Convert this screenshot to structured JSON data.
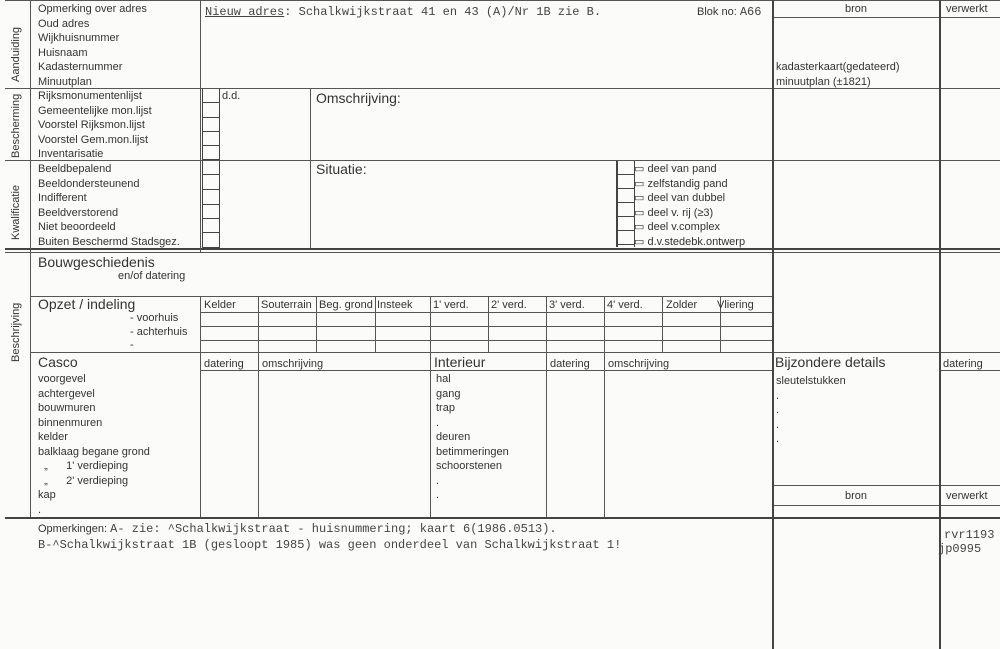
{
  "aanduiding": {
    "side_label": "Aanduiding",
    "fields": [
      "Opmerking over adres",
      "Oud adres",
      "Wijkhuisnummer",
      "Huisnaam",
      "Kadasternummer",
      "Minuutplan"
    ],
    "typed_label": "Nieuw adres",
    "typed_value": ": Schalkwijkstraat 41 en 43 (A)/Nr 1B zie B.",
    "blok_label": "Blok no:",
    "blok_value": "A66"
  },
  "bron_header": "bron",
  "verwerkt_header": "verwerkt",
  "bron_entries": [
    "kadasterkaart(gedateerd)",
    "minuutplan (±1821)"
  ],
  "bescherming": {
    "side_label": "Bescherming",
    "fields": [
      "Rijksmonumentenlijst",
      "Gemeentelijke mon.lijst",
      "Voorstel Rijksmon.lijst",
      "Voorstel Gem.mon.lijst",
      "Inventarisatie"
    ],
    "dd_label": "d.d.",
    "omschrijving_label": "Omschrijving:"
  },
  "kwalificatie": {
    "side_label": "Kwalificatie",
    "fields": [
      "Beeldbepalend",
      "Beeldondersteunend",
      "Indifferent",
      "Beeldverstorend",
      "Niet beoordeeld",
      "Buiten Beschermd Stadsgez."
    ],
    "situatie_label": "Situatie:",
    "situatie_options": [
      "deel van pand",
      "zelfstandig pand",
      "deel van dubbel",
      "deel v. rij  (≥3)",
      "deel v.complex",
      "d.v.stedebk.ontwerp"
    ]
  },
  "beschrijving": {
    "side_label": "Beschrijving",
    "bouwgeschiedenis": "Bouwgeschiedenis",
    "dating_sub": "en/of datering",
    "opzet": "Opzet / indeling",
    "opzet_rows": [
      "- voorhuis",
      "- achterhuis",
      "-"
    ],
    "opzet_columns": [
      "Kelder",
      "Souterrain",
      "Beg. grond",
      "Insteek",
      "1' verd.",
      "2' verd.",
      "3' verd.",
      "4' verd.",
      "Zolder",
      "Vliering"
    ],
    "casco": "Casco",
    "casco_datering": "datering",
    "casco_omschrijving": "omschrijving",
    "casco_items": [
      "voorgevel",
      "achtergevel",
      "bouwmuren",
      "binnenmuren",
      "kelder",
      "balklaag begane grond",
      "  „      1' verdieping",
      "  „      2' verdieping",
      "kap",
      "."
    ],
    "interieur": "Interieur",
    "int_datering": "datering",
    "int_omschrijving": "omschrijving",
    "interieur_items": [
      "hal",
      "gang",
      "trap",
      ".",
      "deuren",
      "betimmeringen",
      "schoorstenen",
      ".",
      "."
    ],
    "bijzondere": "Bijzondere details",
    "bijz_datering": "datering",
    "bijz_items": [
      "sleutelstukken",
      ".",
      ".",
      ".",
      "."
    ],
    "bron2": "bron",
    "verwerkt2": "verwerkt"
  },
  "opmerkingen": {
    "label": "Opmerkingen:",
    "line1": "A- zie: ^Schalkwijkstraat - huisnummering; kaart 6(1986.0513).",
    "line2": "B-^Schalkwijkstraat 1B (gesloopt 1985) was geen onderdeel van Schalkwijkstraat 1!",
    "codes": [
      "rvr1193",
      "jp0995"
    ]
  }
}
